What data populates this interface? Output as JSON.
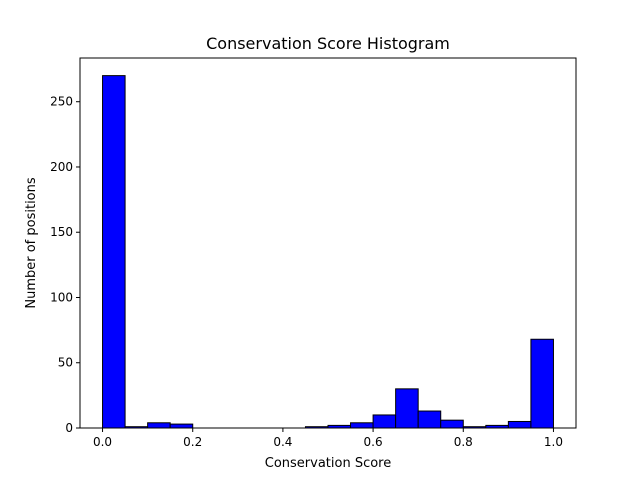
{
  "chart_data": {
    "type": "histogram",
    "title": "Conservation Score Histogram",
    "xlabel": "Conservation Score",
    "ylabel": "Number of positions",
    "xlim": [
      -0.05,
      1.05
    ],
    "ylim": [
      0,
      283.5
    ],
    "grid": false,
    "bar_color": "#0000ff",
    "edge_color": "#000000",
    "bins": [
      {
        "start": 0.0,
        "end": 0.05,
        "count": 270
      },
      {
        "start": 0.05,
        "end": 0.1,
        "count": 1
      },
      {
        "start": 0.1,
        "end": 0.15,
        "count": 4
      },
      {
        "start": 0.15,
        "end": 0.2,
        "count": 3
      },
      {
        "start": 0.2,
        "end": 0.25,
        "count": 0
      },
      {
        "start": 0.25,
        "end": 0.3,
        "count": 0
      },
      {
        "start": 0.3,
        "end": 0.35,
        "count": 0
      },
      {
        "start": 0.35,
        "end": 0.4,
        "count": 0
      },
      {
        "start": 0.4,
        "end": 0.45,
        "count": 0
      },
      {
        "start": 0.45,
        "end": 0.5,
        "count": 1
      },
      {
        "start": 0.5,
        "end": 0.55,
        "count": 2
      },
      {
        "start": 0.55,
        "end": 0.6,
        "count": 4
      },
      {
        "start": 0.6,
        "end": 0.65,
        "count": 10
      },
      {
        "start": 0.65,
        "end": 0.7,
        "count": 30
      },
      {
        "start": 0.7,
        "end": 0.75,
        "count": 13
      },
      {
        "start": 0.75,
        "end": 0.8,
        "count": 6
      },
      {
        "start": 0.8,
        "end": 0.85,
        "count": 1
      },
      {
        "start": 0.85,
        "end": 0.9,
        "count": 2
      },
      {
        "start": 0.9,
        "end": 0.95,
        "count": 5
      },
      {
        "start": 0.95,
        "end": 1.0,
        "count": 68
      }
    ],
    "x_ticks": [
      {
        "value": 0.0,
        "label": "0.0"
      },
      {
        "value": 0.2,
        "label": "0.2"
      },
      {
        "value": 0.4,
        "label": "0.4"
      },
      {
        "value": 0.6,
        "label": "0.6"
      },
      {
        "value": 0.8,
        "label": "0.8"
      },
      {
        "value": 1.0,
        "label": "1.0"
      }
    ],
    "y_ticks": [
      {
        "value": 0,
        "label": "0"
      },
      {
        "value": 50,
        "label": "50"
      },
      {
        "value": 100,
        "label": "100"
      },
      {
        "value": 150,
        "label": "150"
      },
      {
        "value": 200,
        "label": "200"
      },
      {
        "value": 250,
        "label": "250"
      }
    ]
  }
}
